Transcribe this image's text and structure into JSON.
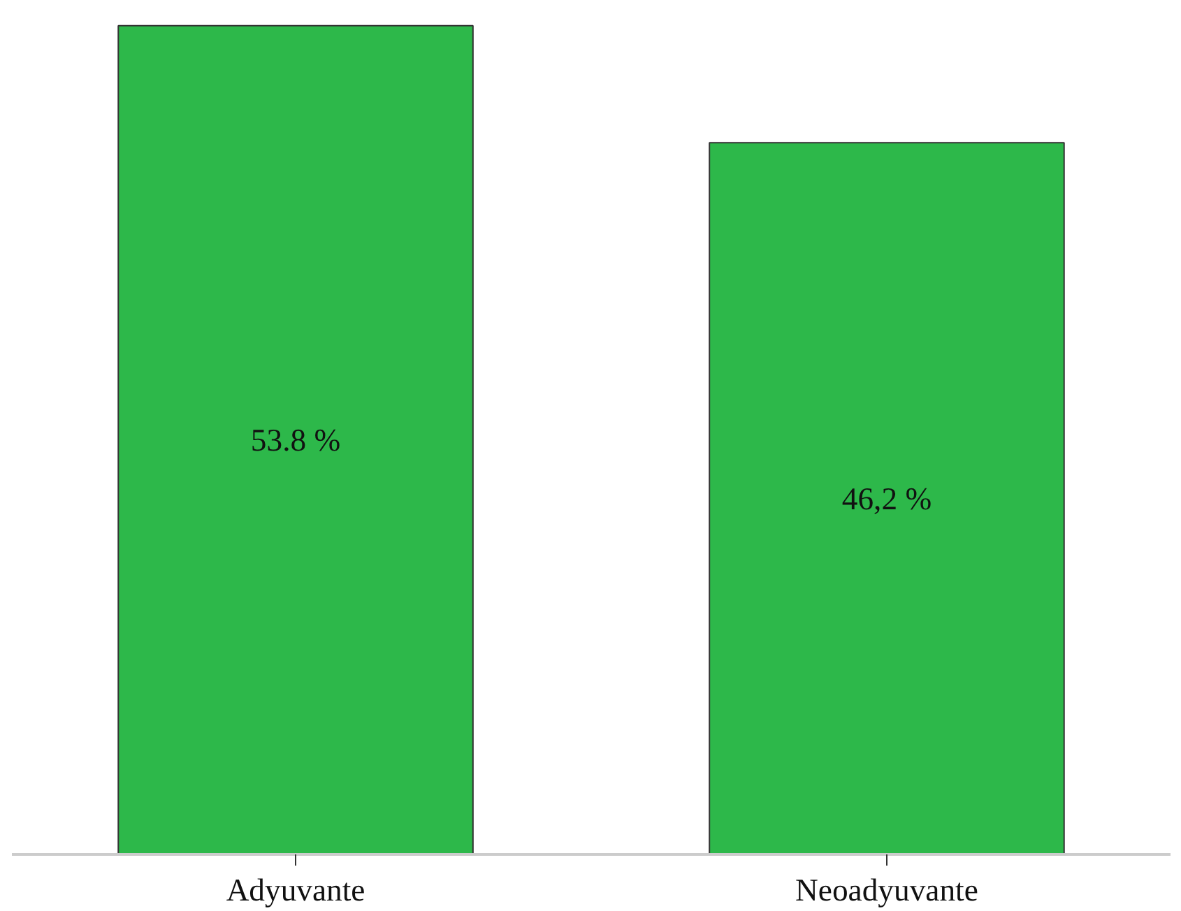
{
  "chart_data": {
    "type": "bar",
    "categories": [
      "Adyuvante",
      "Neoadyuvante"
    ],
    "values": [
      53.8,
      46.2
    ],
    "value_labels": [
      "53.8 %",
      "46,2 %"
    ],
    "color": "#2db84a",
    "grid": false
  }
}
